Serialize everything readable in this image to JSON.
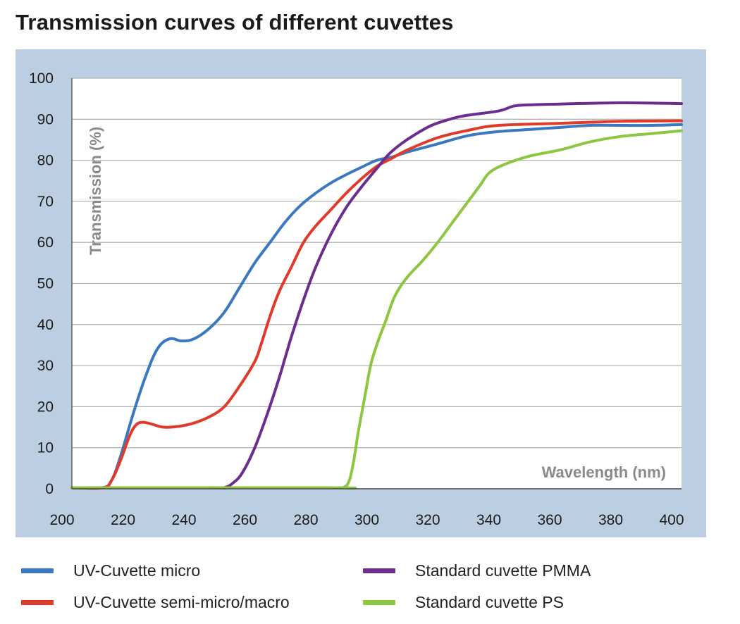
{
  "chart_data": {
    "type": "line",
    "title": "Transmission curves of different cuvettes",
    "xlabel": "Wavelength (nm)",
    "ylabel": "Transmission (%)",
    "xlim": [
      200,
      400
    ],
    "ylim": [
      0,
      100
    ],
    "xticks": [
      200,
      220,
      240,
      260,
      280,
      300,
      320,
      340,
      360,
      380,
      400
    ],
    "yticks": [
      0,
      10,
      20,
      30,
      40,
      50,
      60,
      70,
      80,
      90,
      100
    ],
    "grid": "horizontal",
    "legend_position": "bottom",
    "colors": {
      "plot_frame": "#bccfe2",
      "plot_bg": "#ffffff",
      "grid": "#b5b5b5"
    },
    "series": [
      {
        "name": "UV-Cuvette micro",
        "color": "#3b78c2",
        "points": [
          [
            200,
            0
          ],
          [
            210,
            0
          ],
          [
            213,
            2
          ],
          [
            216,
            8
          ],
          [
            220,
            18
          ],
          [
            224,
            27
          ],
          [
            228,
            34
          ],
          [
            232,
            36.5
          ],
          [
            236,
            36
          ],
          [
            240,
            36.5
          ],
          [
            245,
            39
          ],
          [
            250,
            43
          ],
          [
            255,
            49
          ],
          [
            260,
            55
          ],
          [
            265,
            60
          ],
          [
            270,
            65
          ],
          [
            275,
            69
          ],
          [
            280,
            72
          ],
          [
            285,
            74.5
          ],
          [
            290,
            76.5
          ],
          [
            295,
            78.3
          ],
          [
            300,
            80
          ],
          [
            305,
            80.8
          ],
          [
            310,
            82
          ],
          [
            320,
            84
          ],
          [
            330,
            86
          ],
          [
            340,
            87
          ],
          [
            350,
            87.5
          ],
          [
            360,
            88
          ],
          [
            370,
            88.5
          ],
          [
            380,
            88.5
          ],
          [
            390,
            88.5
          ],
          [
            400,
            88.7
          ]
        ]
      },
      {
        "name": "UV-Cuvette semi-micro/macro",
        "color": "#e03a2a",
        "points": [
          [
            200,
            0
          ],
          [
            210,
            0
          ],
          [
            213,
            2
          ],
          [
            216,
            7
          ],
          [
            219,
            13
          ],
          [
            221,
            15.5
          ],
          [
            223,
            16.2
          ],
          [
            226,
            15.8
          ],
          [
            230,
            15
          ],
          [
            235,
            15.2
          ],
          [
            240,
            16
          ],
          [
            245,
            17.5
          ],
          [
            250,
            20
          ],
          [
            255,
            25
          ],
          [
            260,
            31
          ],
          [
            262,
            35
          ],
          [
            265,
            42
          ],
          [
            268,
            48
          ],
          [
            272,
            54
          ],
          [
            276,
            60
          ],
          [
            280,
            64
          ],
          [
            285,
            68
          ],
          [
            290,
            72
          ],
          [
            295,
            75.5
          ],
          [
            300,
            78.5
          ],
          [
            305,
            80.5
          ],
          [
            310,
            82.5
          ],
          [
            320,
            85.5
          ],
          [
            330,
            87.3
          ],
          [
            340,
            88.5
          ],
          [
            360,
            89
          ],
          [
            380,
            89.5
          ],
          [
            400,
            89.6
          ]
        ]
      },
      {
        "name": "Standard cuvette PMMA",
        "color": "#6b2d8e",
        "points": [
          [
            200,
            0
          ],
          [
            245,
            0
          ],
          [
            250,
            0.3
          ],
          [
            253,
            1.5
          ],
          [
            256,
            4
          ],
          [
            260,
            10
          ],
          [
            264,
            18
          ],
          [
            268,
            27
          ],
          [
            272,
            37
          ],
          [
            276,
            46
          ],
          [
            280,
            54
          ],
          [
            285,
            62
          ],
          [
            290,
            68.5
          ],
          [
            295,
            73.5
          ],
          [
            300,
            78
          ],
          [
            304,
            81.5
          ],
          [
            308,
            84
          ],
          [
            312,
            86
          ],
          [
            318,
            88.5
          ],
          [
            325,
            90.2
          ],
          [
            330,
            91
          ],
          [
            340,
            92
          ],
          [
            345,
            93.2
          ],
          [
            350,
            93.5
          ],
          [
            360,
            93.7
          ],
          [
            380,
            94
          ],
          [
            400,
            93.8
          ]
        ]
      },
      {
        "name": "Standard cuvette PS",
        "color": "#8dc63f",
        "points": [
          [
            200,
            0
          ],
          [
            285,
            0
          ],
          [
            289,
            0.3
          ],
          [
            291,
            2
          ],
          [
            292.5,
            7
          ],
          [
            294,
            14
          ],
          [
            296,
            22
          ],
          [
            298,
            30
          ],
          [
            300,
            35
          ],
          [
            303,
            41
          ],
          [
            306,
            47
          ],
          [
            310,
            51.5
          ],
          [
            315,
            55.5
          ],
          [
            320,
            60
          ],
          [
            325,
            65
          ],
          [
            330,
            70
          ],
          [
            334,
            74
          ],
          [
            337,
            77
          ],
          [
            342,
            79
          ],
          [
            350,
            81
          ],
          [
            360,
            82.5
          ],
          [
            370,
            84.5
          ],
          [
            380,
            85.8
          ],
          [
            390,
            86.5
          ],
          [
            400,
            87.2
          ]
        ]
      }
    ]
  }
}
